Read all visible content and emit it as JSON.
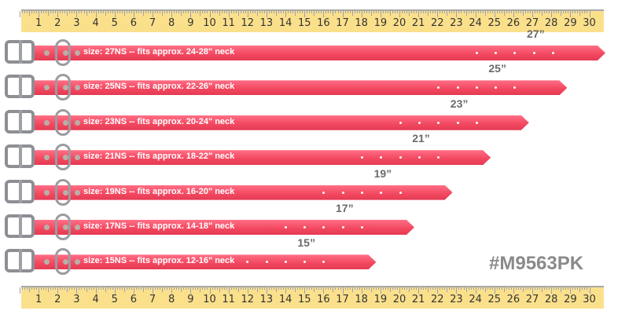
{
  "ruler": {
    "numbers": [
      1,
      2,
      3,
      4,
      5,
      6,
      7,
      8,
      9,
      10,
      11,
      12,
      13,
      14,
      15,
      16,
      17,
      18,
      19,
      20,
      21,
      22,
      23,
      24,
      25,
      26,
      27,
      28,
      29,
      30
    ]
  },
  "collars": [
    {
      "size_mark": "27”",
      "length_in": 27,
      "label": "size: 27NS -- fits approx. 24-28\" neck"
    },
    {
      "size_mark": "25”",
      "length_in": 25,
      "label": "size: 25NS -- fits approx. 22-26\" neck"
    },
    {
      "size_mark": "23”",
      "length_in": 23,
      "label": "size: 23NS -- fits approx. 20-24\" neck"
    },
    {
      "size_mark": "21”",
      "length_in": 21,
      "label": "size: 21NS -- fits approx. 18-22\" neck"
    },
    {
      "size_mark": "19”",
      "length_in": 19,
      "label": "size: 19NS -- fits approx. 16-20\" neck"
    },
    {
      "size_mark": "17”",
      "length_in": 17,
      "label": "size: 17NS -- fits approx. 14-18\" neck"
    },
    {
      "size_mark": "15”",
      "length_in": 15,
      "label": "size: 15NS -- fits approx. 12-16\" neck"
    }
  ],
  "sku": "#M9563PK",
  "colors": {
    "strap": "#f2475f",
    "ruler": "#fbe08c",
    "hardware": "#8d8f94"
  }
}
